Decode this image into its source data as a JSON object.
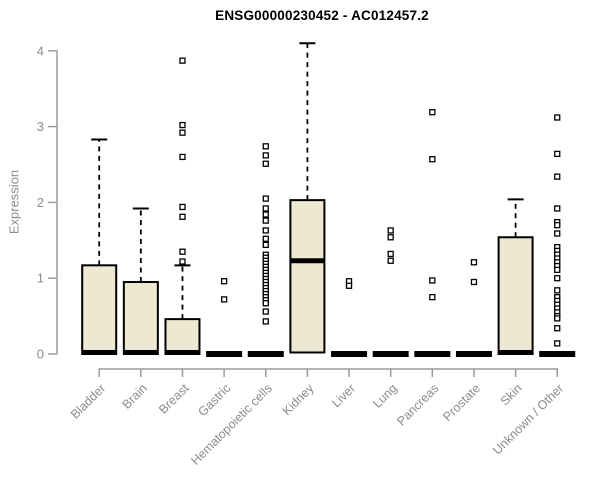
{
  "chart_data": {
    "type": "box",
    "title": "ENSG00000230452 - AC012457.2",
    "ylabel": "Expression",
    "xlabel": "",
    "ylim": [
      0,
      4
    ],
    "y_ticks": [
      0,
      1,
      2,
      3,
      4
    ],
    "grid": false,
    "legend": "none",
    "colors": {
      "box_fill": "#EDE8D1",
      "box_stroke": "#000000",
      "axis_line": "#9B9B9B",
      "axis_text": "#8C8C8C",
      "title_text": "#000000",
      "background": "#FFFFFF"
    },
    "categories": [
      "Bladder",
      "Brain",
      "Breast",
      "Gastric",
      "Hematopoietic cells",
      "Kidney",
      "Liver",
      "Lung",
      "Pancreas",
      "Prostate",
      "Skin",
      "Unknown / Other"
    ],
    "boxes": [
      {
        "name": "Bladder",
        "q1": 0,
        "median": 0.02,
        "q3": 1.17,
        "whisker_low": 0,
        "whisker_high": 2.83,
        "outliers": []
      },
      {
        "name": "Brain",
        "q1": 0,
        "median": 0.02,
        "q3": 0.95,
        "whisker_low": 0,
        "whisker_high": 1.92,
        "outliers": []
      },
      {
        "name": "Breast",
        "q1": 0,
        "median": 0.02,
        "q3": 0.46,
        "whisker_low": 0,
        "whisker_high": 1.17,
        "outliers": [
          3.87,
          3.02,
          2.92,
          2.6,
          1.94,
          1.81,
          1.35,
          1.22
        ]
      },
      {
        "name": "Gastric",
        "q1": 0,
        "median": 0,
        "q3": 0,
        "whisker_low": 0,
        "whisker_high": 0,
        "outliers": [
          0.96,
          0.72
        ]
      },
      {
        "name": "Hematopoietic cells",
        "q1": 0,
        "median": 0,
        "q3": 0,
        "whisker_low": 0,
        "whisker_high": 0,
        "outliers": [
          2.74,
          2.62,
          2.51,
          2.05,
          1.92,
          1.84,
          1.76,
          1.63,
          1.52,
          1.44,
          1.31,
          1.27,
          1.23,
          1.19,
          1.15,
          1.11,
          1.07,
          1.03,
          0.99,
          0.95,
          0.91,
          0.87,
          0.83,
          0.79,
          0.75,
          0.71,
          0.67,
          0.56,
          0.43
        ]
      },
      {
        "name": "Kidney",
        "q1": 0.02,
        "median": 1.23,
        "q3": 2.03,
        "whisker_low": 0.02,
        "whisker_high": 4.1,
        "outliers": []
      },
      {
        "name": "Liver",
        "q1": 0,
        "median": 0,
        "q3": 0,
        "whisker_low": 0,
        "whisker_high": 0,
        "outliers": [
          0.96,
          0.9
        ]
      },
      {
        "name": "Lung",
        "q1": 0,
        "median": 0,
        "q3": 0,
        "whisker_low": 0,
        "whisker_high": 0,
        "outliers": [
          1.63,
          1.54,
          1.32,
          1.23
        ]
      },
      {
        "name": "Pancreas",
        "q1": 0,
        "median": 0,
        "q3": 0,
        "whisker_low": 0,
        "whisker_high": 0,
        "outliers": [
          3.19,
          2.57,
          0.97,
          0.75
        ]
      },
      {
        "name": "Prostate",
        "q1": 0,
        "median": 0,
        "q3": 0,
        "whisker_low": 0,
        "whisker_high": 0,
        "outliers": [
          1.21,
          0.95
        ]
      },
      {
        "name": "Skin",
        "q1": 0,
        "median": 0.02,
        "q3": 1.54,
        "whisker_low": 0,
        "whisker_high": 2.04,
        "outliers": []
      },
      {
        "name": "Unknown / Other",
        "q1": 0,
        "median": 0,
        "q3": 0,
        "whisker_low": 0,
        "whisker_high": 0,
        "outliers": [
          3.12,
          2.64,
          2.34,
          1.92,
          1.74,
          1.7,
          1.59,
          1.41,
          1.36,
          1.31,
          1.26,
          1.21,
          1.16,
          1.11,
          1.0,
          0.84,
          0.75,
          0.7,
          0.65,
          0.6,
          0.55,
          0.5,
          0.47,
          0.34,
          0.14
        ]
      }
    ]
  }
}
